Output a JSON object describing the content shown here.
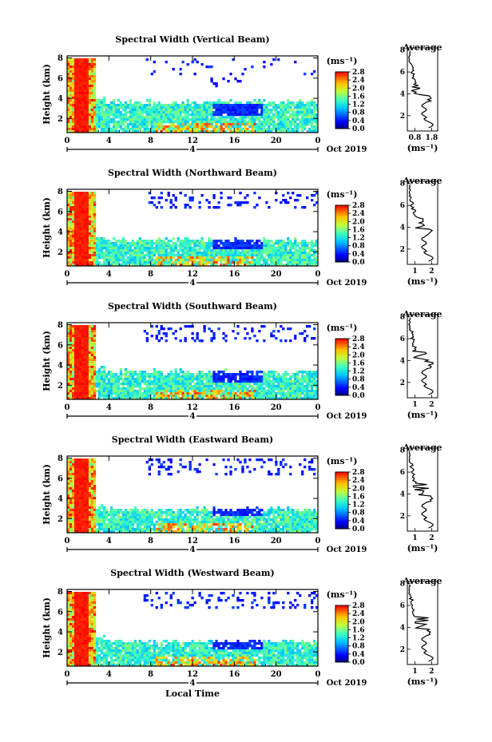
{
  "chart_data": [
    {
      "type": "heatmap",
      "title": "Spectral Width (Vertical Beam)",
      "ylabel": "Height (km)",
      "colorbar_label": "(ms⁻¹)",
      "colorbar_ticks": [
        "0.0",
        "0.4",
        "0.8",
        "1.2",
        "1.6",
        "2.0",
        "2.4",
        "2.8"
      ],
      "xticks": [
        "0",
        "4",
        "8",
        "12",
        "16",
        "20",
        "0"
      ],
      "yticks": [
        "2",
        "4",
        "6",
        "8"
      ],
      "date_label": "Oct 2019",
      "day_marker": "4",
      "profile": {
        "title": "Average",
        "xlabel": "(ms⁻¹)",
        "xticks": [
          "0.8",
          "1.8"
        ],
        "yticks": [
          "2",
          "4",
          "6",
          "8"
        ]
      }
    },
    {
      "type": "heatmap",
      "title": "Spectral Width (Northward Beam)",
      "ylabel": "Height (km)",
      "colorbar_label": "(ms⁻¹)",
      "colorbar_ticks": [
        "0.0",
        "0.4",
        "0.8",
        "1.2",
        "1.6",
        "2.0",
        "2.4",
        "2.8"
      ],
      "xticks": [
        "0",
        "4",
        "8",
        "12",
        "16",
        "20",
        "0"
      ],
      "yticks": [
        "2",
        "4",
        "6",
        "8"
      ],
      "date_label": "Oct 2019",
      "day_marker": "4",
      "profile": {
        "title": "Average",
        "xlabel": "(ms⁻¹)",
        "xticks": [
          "1",
          "2"
        ],
        "yticks": [
          "2",
          "4",
          "6",
          "8"
        ]
      }
    },
    {
      "type": "heatmap",
      "title": "Spectral Width (Southward Beam)",
      "ylabel": "Height (km)",
      "colorbar_label": "(ms⁻¹)",
      "colorbar_ticks": [
        "0.0",
        "0.4",
        "0.8",
        "1.2",
        "1.6",
        "2.0",
        "2.4",
        "2.8"
      ],
      "xticks": [
        "0",
        "4",
        "8",
        "12",
        "16",
        "20",
        "0"
      ],
      "yticks": [
        "2",
        "4",
        "6",
        "8"
      ],
      "date_label": "Oct 2019",
      "day_marker": "4",
      "profile": {
        "title": "Average",
        "xlabel": "(ms⁻¹)",
        "xticks": [
          "1",
          "2"
        ],
        "yticks": [
          "2",
          "4",
          "6",
          "8"
        ]
      }
    },
    {
      "type": "heatmap",
      "title": "Spectral Width (Eastward Beam)",
      "ylabel": "Height (km)",
      "colorbar_label": "(ms⁻¹)",
      "colorbar_ticks": [
        "0.0",
        "0.4",
        "0.8",
        "1.2",
        "1.6",
        "2.0",
        "2.4",
        "2.8"
      ],
      "xticks": [
        "0",
        "4",
        "8",
        "12",
        "16",
        "20",
        "0"
      ],
      "yticks": [
        "2",
        "4",
        "6",
        "8"
      ],
      "date_label": "Oct 2019",
      "day_marker": "4",
      "profile": {
        "title": "Average",
        "xlabel": "(ms⁻¹)",
        "xticks": [
          "1",
          "2"
        ],
        "yticks": [
          "2",
          "4",
          "6",
          "8"
        ]
      }
    },
    {
      "type": "heatmap",
      "title": "Spectral Width (Westward Beam)",
      "ylabel": "Height (km)",
      "colorbar_label": "(ms⁻¹)",
      "colorbar_ticks": [
        "0.0",
        "0.4",
        "0.8",
        "1.2",
        "1.6",
        "2.0",
        "2.4",
        "2.8"
      ],
      "xticks": [
        "0",
        "4",
        "8",
        "12",
        "16",
        "20",
        "0"
      ],
      "yticks": [
        "2",
        "4",
        "6",
        "8"
      ],
      "date_label": "Oct 2019",
      "day_marker": "4",
      "xlabel": "Local Time",
      "profile": {
        "title": "Average",
        "xlabel": "(ms⁻¹)",
        "xticks": [
          "1",
          "2"
        ],
        "yticks": [
          "2",
          "4",
          "6",
          "8"
        ]
      }
    }
  ]
}
